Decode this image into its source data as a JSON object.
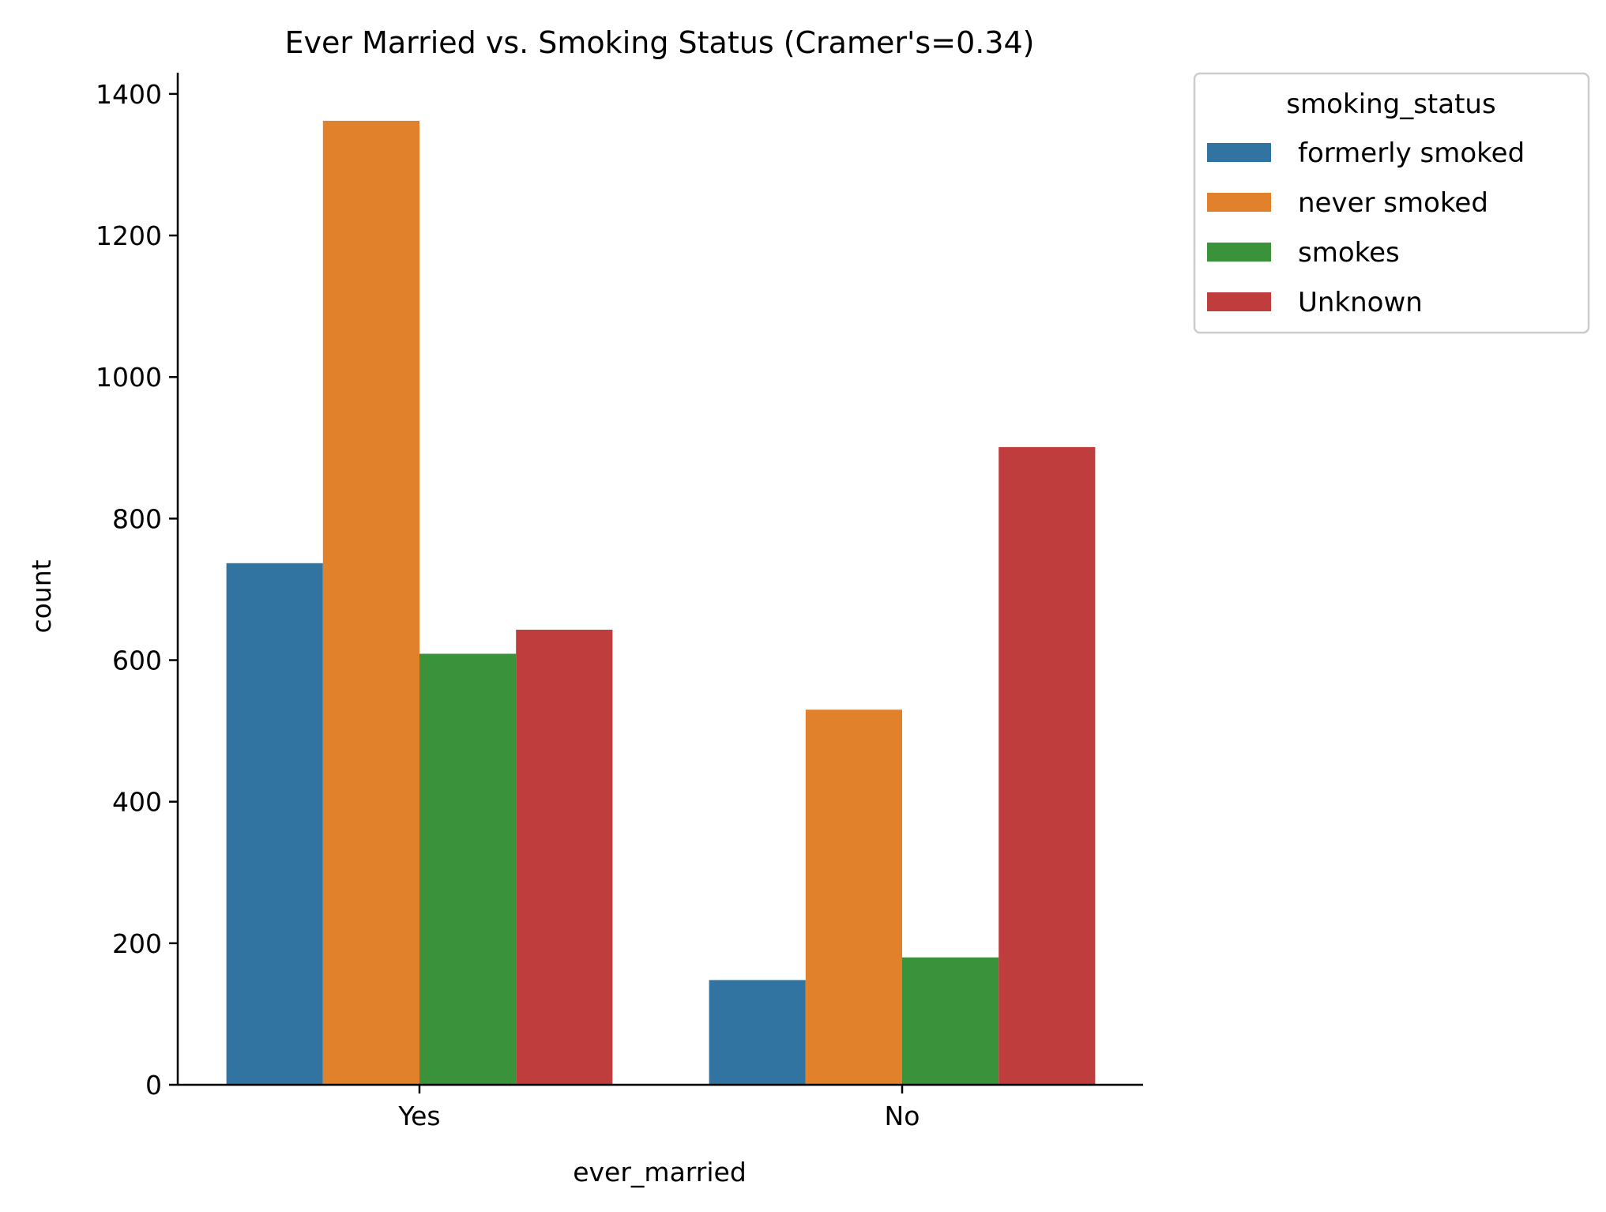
{
  "chart_data": {
    "type": "bar",
    "title": "Ever Married vs. Smoking Status (Cramer's=0.34)",
    "xlabel": "ever_married",
    "ylabel": "count",
    "categories": [
      "Yes",
      "No"
    ],
    "ylim": [
      0,
      1430
    ],
    "yticks": [
      0,
      200,
      400,
      600,
      800,
      1000,
      1200,
      1400
    ],
    "grid": false,
    "legend": {
      "title": "smoking_status",
      "placement": "outside upper right"
    },
    "series": [
      {
        "name": "formerly smoked",
        "color": "#3274a1",
        "values": [
          737,
          148
        ]
      },
      {
        "name": "never smoked",
        "color": "#e1812c",
        "values": [
          1362,
          530
        ]
      },
      {
        "name": "smokes",
        "color": "#3a923a",
        "values": [
          609,
          180
        ]
      },
      {
        "name": "Unknown",
        "color": "#c03d3e",
        "values": [
          643,
          901
        ]
      }
    ]
  }
}
